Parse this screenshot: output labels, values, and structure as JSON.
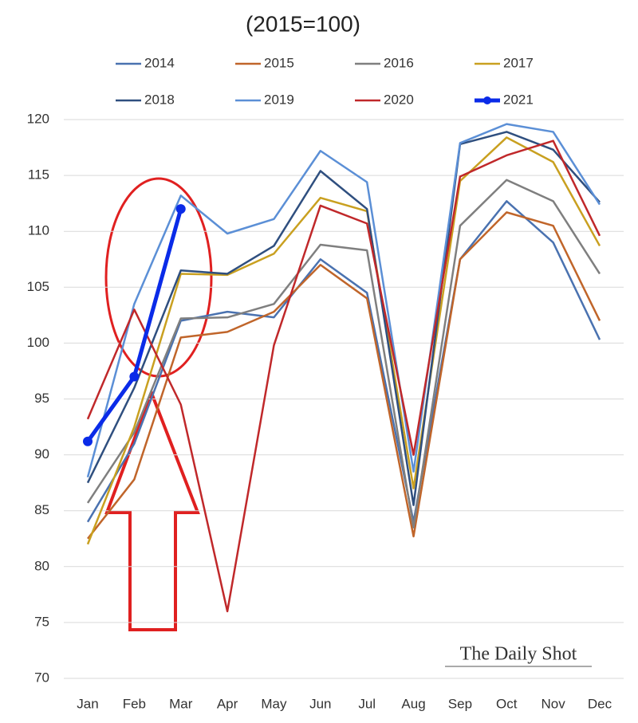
{
  "chart_data": {
    "type": "line",
    "title": "(2015=100)",
    "categories": [
      "Jan",
      "Feb",
      "Mar",
      "Apr",
      "May",
      "Jun",
      "Jul",
      "Aug",
      "Sep",
      "Oct",
      "Nov",
      "Dec"
    ],
    "series": [
      {
        "name": "2014",
        "color": "#4a72b0",
        "values": [
          84,
          91,
          102,
          102.8,
          102.3,
          107.5,
          104.5,
          84,
          107.5,
          112.7,
          109,
          100.3
        ]
      },
      {
        "name": "2015",
        "color": "#c0652a",
        "values": [
          82.5,
          87.8,
          100.5,
          101,
          102.8,
          107,
          104,
          82.7,
          107.5,
          111.7,
          110.5,
          102
        ]
      },
      {
        "name": "2016",
        "color": "#7f7f7f",
        "values": [
          85.7,
          92,
          102.2,
          102.3,
          103.5,
          108.8,
          108.3,
          83.5,
          110.5,
          114.6,
          112.7,
          106.2
        ]
      },
      {
        "name": "2017",
        "color": "#c9a020",
        "values": [
          82,
          92.5,
          106.2,
          106.1,
          108,
          113,
          111.8,
          87,
          114.5,
          118.4,
          116.2,
          108.7
        ]
      },
      {
        "name": "2018",
        "color": "#2f4f7f",
        "values": [
          87.5,
          96,
          106.5,
          106.2,
          108.7,
          115.4,
          112,
          85.5,
          117.8,
          118.9,
          117.3,
          112.6
        ]
      },
      {
        "name": "2019",
        "color": "#5b8fd6",
        "values": [
          88,
          103.5,
          113.2,
          109.8,
          111.1,
          117.2,
          114.4,
          88.5,
          117.9,
          119.6,
          118.9,
          112.4
        ]
      },
      {
        "name": "2020",
        "color": "#c0282a",
        "values": [
          93.2,
          103,
          94.5,
          76,
          99.8,
          112.3,
          110.7,
          90,
          114.9,
          116.8,
          118.1,
          109.6
        ]
      },
      {
        "name": "2021",
        "color": "#0a2be8",
        "values": [
          91.2,
          97,
          112,
          null,
          null,
          null,
          null,
          null,
          null,
          null,
          null,
          null
        ]
      }
    ],
    "ylim": [
      70,
      120
    ],
    "yticks": [
      70,
      75,
      80,
      85,
      90,
      95,
      100,
      105,
      110,
      115,
      120
    ],
    "grid": true,
    "watermark": "The Daily Shot"
  }
}
